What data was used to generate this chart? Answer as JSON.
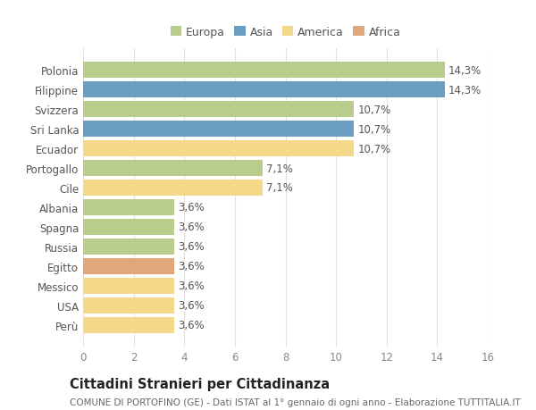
{
  "categories": [
    "Perù",
    "USA",
    "Messico",
    "Egitto",
    "Russia",
    "Spagna",
    "Albania",
    "Cile",
    "Portogallo",
    "Ecuador",
    "Sri Lanka",
    "Svizzera",
    "Filippine",
    "Polonia"
  ],
  "values": [
    3.6,
    3.6,
    3.6,
    3.6,
    3.6,
    3.6,
    3.6,
    7.1,
    7.1,
    10.7,
    10.7,
    10.7,
    14.3,
    14.3
  ],
  "labels": [
    "3,6%",
    "3,6%",
    "3,6%",
    "3,6%",
    "3,6%",
    "3,6%",
    "3,6%",
    "7,1%",
    "7,1%",
    "10,7%",
    "10,7%",
    "10,7%",
    "14,3%",
    "14,3%"
  ],
  "colors": [
    "#f5d98b",
    "#f5d98b",
    "#f5d98b",
    "#e0a87a",
    "#b8cc8c",
    "#b8cc8c",
    "#b8cc8c",
    "#f5d98b",
    "#b8cc8c",
    "#f5d98b",
    "#6b9dc2",
    "#b8cc8c",
    "#6b9dc2",
    "#b8cc8c"
  ],
  "legend": [
    {
      "label": "Europa",
      "color": "#b8cc8c"
    },
    {
      "label": "Asia",
      "color": "#6b9dc2"
    },
    {
      "label": "America",
      "color": "#f5d98b"
    },
    {
      "label": "Africa",
      "color": "#e0a87a"
    }
  ],
  "title": "Cittadini Stranieri per Cittadinanza",
  "subtitle": "COMUNE DI PORTOFINO (GE) - Dati ISTAT al 1° gennaio di ogni anno - Elaborazione TUTTITALIA.IT",
  "xlim": [
    0,
    16
  ],
  "xticks": [
    0,
    2,
    4,
    6,
    8,
    10,
    12,
    14,
    16
  ],
  "background_color": "#ffffff",
  "grid_color": "#e0e0e0",
  "bar_height": 0.82,
  "label_fontsize": 8.5,
  "tick_fontsize": 8.5,
  "title_fontsize": 10.5,
  "subtitle_fontsize": 7.5
}
